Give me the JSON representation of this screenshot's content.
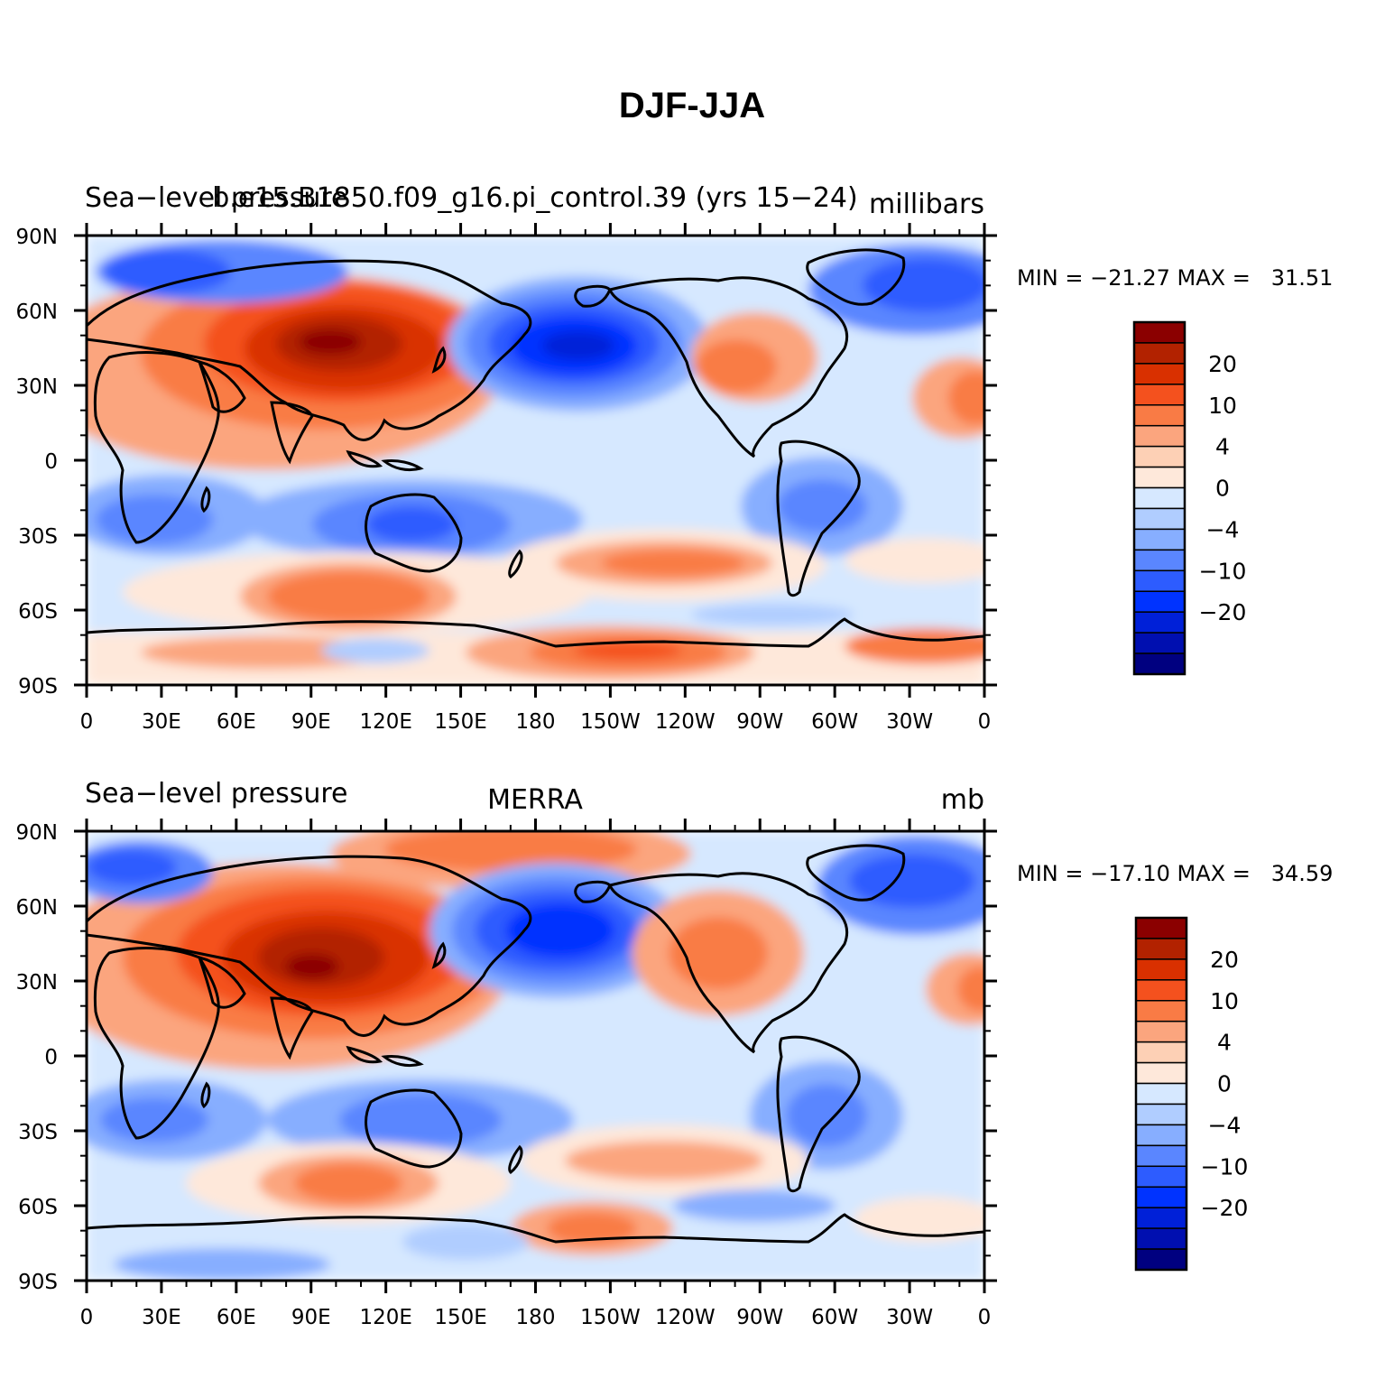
{
  "figure": {
    "title": "DJF-JJA"
  },
  "panels": [
    {
      "left_label": "Sea-level pressure",
      "center_label": "b.e15.B1850.f09_g16.pi_control.39 (yrs 15-24)",
      "right_label": "millibars",
      "stats": "MIN = -21.27 MAX =   31.51"
    },
    {
      "left_label": "Sea-level pressure",
      "center_label": "MERRA",
      "right_label": "mb",
      "stats": "MIN = -17.10 MAX =   34.59"
    }
  ],
  "axes": {
    "lat_ticks": [
      "90N",
      "60N",
      "30N",
      "0",
      "30S",
      "60S",
      "90S"
    ],
    "lon_ticks": [
      "0",
      "30E",
      "60E",
      "90E",
      "120E",
      "150E",
      "180",
      "150W",
      "120W",
      "90W",
      "60W",
      "30W",
      "0"
    ]
  },
  "colorbar": {
    "labels": [
      "20",
      "10",
      "4",
      "0",
      "-4",
      "-10",
      "-20"
    ],
    "colors": [
      "#8b0000",
      "#b22200",
      "#d93000",
      "#f4511e",
      "#f97b45",
      "#fba57e",
      "#fdd0b5",
      "#fee8da",
      "#d6e8ff",
      "#b0cdff",
      "#87aeff",
      "#5a86ff",
      "#2d5cff",
      "#0033ff",
      "#0020d8",
      "#000fb0",
      "#000080"
    ]
  }
}
